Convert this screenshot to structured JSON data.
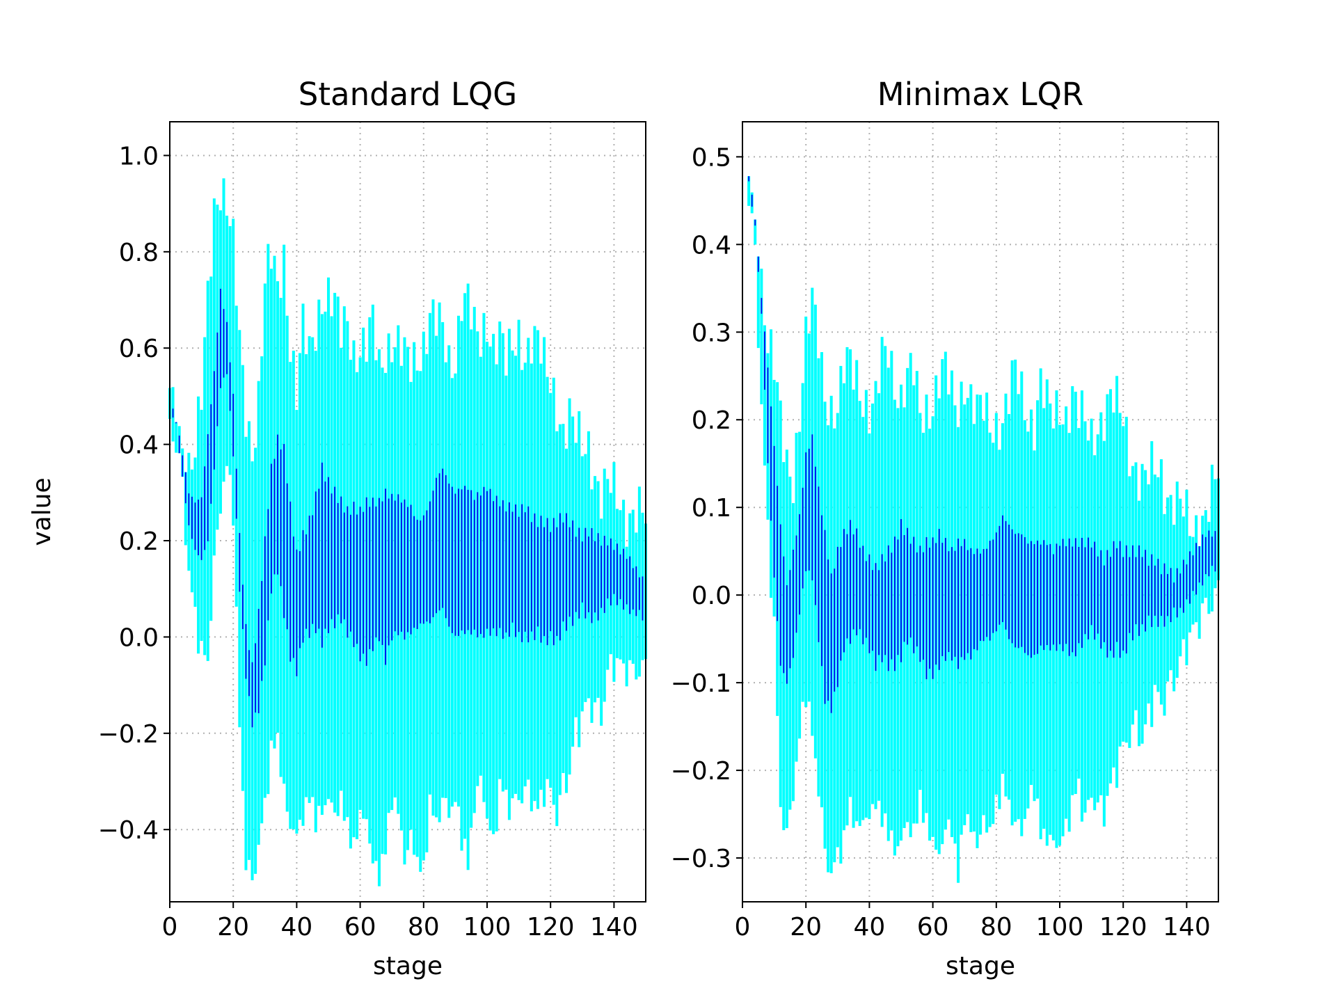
{
  "chart_data": [
    {
      "type": "bar",
      "title": "Standard LQG",
      "xlabel": "stage",
      "ylabel": "value",
      "xlim": [
        0,
        150
      ],
      "ylim": [
        -0.55,
        1.07
      ],
      "xticks": [
        0,
        20,
        40,
        60,
        80,
        100,
        120,
        140
      ],
      "yticks": [
        -0.4,
        -0.2,
        0.0,
        0.2,
        0.4,
        0.6,
        0.8,
        1.0
      ],
      "ytick_labels": [
        "−0.4",
        "−0.2",
        "0.0",
        "0.2",
        "0.4",
        "0.6",
        "0.8",
        "1.0"
      ],
      "grid": true,
      "band_colors": {
        "outer": "#00ffff",
        "inner": "#0000ee"
      },
      "stage": [
        0,
        2,
        4,
        6,
        8,
        10,
        12,
        14,
        16,
        18,
        20,
        22,
        24,
        26,
        28,
        30,
        32,
        34,
        36,
        38,
        40,
        42,
        44,
        46,
        48,
        50,
        52,
        54,
        56,
        58,
        60,
        62,
        64,
        66,
        68,
        70,
        72,
        74,
        76,
        78,
        80,
        82,
        84,
        86,
        88,
        90,
        92,
        94,
        96,
        98,
        100,
        102,
        104,
        106,
        108,
        110,
        112,
        114,
        116,
        118,
        120,
        122,
        124,
        126,
        128,
        130,
        132,
        134,
        136,
        138,
        140,
        142,
        144,
        146,
        148,
        150
      ],
      "outer_low": [
        0.48,
        0.43,
        0.36,
        0.16,
        0.07,
        0.0,
        -0.01,
        0.18,
        0.32,
        0.38,
        0.3,
        -0.15,
        -0.43,
        -0.47,
        -0.4,
        -0.32,
        -0.2,
        -0.18,
        -0.29,
        -0.35,
        -0.38,
        -0.33,
        -0.3,
        -0.35,
        -0.32,
        -0.3,
        -0.33,
        -0.3,
        -0.37,
        -0.4,
        -0.33,
        -0.35,
        -0.42,
        -0.47,
        -0.4,
        -0.3,
        -0.33,
        -0.42,
        -0.38,
        -0.43,
        -0.45,
        -0.32,
        -0.35,
        -0.3,
        -0.33,
        -0.3,
        -0.38,
        -0.45,
        -0.3,
        -0.27,
        -0.33,
        -0.4,
        -0.28,
        -0.3,
        -0.32,
        -0.3,
        -0.28,
        -0.3,
        -0.33,
        -0.28,
        -0.3,
        -0.33,
        -0.28,
        -0.25,
        -0.16,
        -0.15,
        -0.1,
        -0.12,
        -0.13,
        -0.05,
        -0.02,
        -0.04,
        -0.03,
        -0.05,
        -0.03,
        -0.04
      ],
      "inner_low": [
        0.48,
        0.44,
        0.33,
        0.23,
        0.18,
        0.16,
        0.2,
        0.35,
        0.52,
        0.55,
        0.38,
        0.1,
        -0.08,
        -0.18,
        -0.15,
        -0.05,
        0.1,
        0.14,
        0.05,
        -0.04,
        -0.07,
        0.0,
        0.01,
        0.02,
        -0.01,
        0.02,
        0.03,
        0.04,
        0.01,
        -0.01,
        -0.04,
        -0.05,
        -0.02,
        0.0,
        -0.05,
        0.0,
        0.01,
        0.0,
        0.01,
        0.02,
        0.03,
        0.03,
        0.05,
        0.06,
        0.02,
        0.0,
        0.01,
        0.01,
        0.01,
        0.0,
        0.01,
        0.01,
        0.01,
        0.0,
        0.02,
        0.0,
        0.0,
        0.0,
        0.01,
        -0.01,
        0.0,
        -0.01,
        0.02,
        0.03,
        0.04,
        0.06,
        0.04,
        0.04,
        0.05,
        0.07,
        0.08,
        0.07,
        0.06,
        0.05,
        0.05,
        0.03
      ],
      "inner_high": [
        0.49,
        0.45,
        0.38,
        0.3,
        0.28,
        0.29,
        0.42,
        0.55,
        0.72,
        0.65,
        0.5,
        0.21,
        0.02,
        -0.06,
        0.05,
        0.2,
        0.35,
        0.41,
        0.39,
        0.27,
        0.17,
        0.21,
        0.24,
        0.29,
        0.35,
        0.32,
        0.3,
        0.28,
        0.26,
        0.27,
        0.26,
        0.28,
        0.28,
        0.28,
        0.3,
        0.29,
        0.29,
        0.28,
        0.27,
        0.24,
        0.25,
        0.28,
        0.33,
        0.35,
        0.32,
        0.3,
        0.31,
        0.31,
        0.29,
        0.3,
        0.31,
        0.29,
        0.28,
        0.27,
        0.27,
        0.26,
        0.27,
        0.25,
        0.24,
        0.24,
        0.23,
        0.24,
        0.25,
        0.24,
        0.22,
        0.21,
        0.22,
        0.21,
        0.2,
        0.2,
        0.19,
        0.18,
        0.17,
        0.15,
        0.13,
        0.11
      ],
      "outer_high": [
        0.49,
        0.45,
        0.41,
        0.36,
        0.38,
        0.48,
        0.7,
        0.9,
        0.95,
        0.9,
        0.8,
        0.6,
        0.47,
        0.4,
        0.5,
        0.72,
        0.78,
        0.72,
        0.8,
        0.62,
        0.5,
        0.63,
        0.58,
        0.65,
        0.72,
        0.71,
        0.68,
        0.62,
        0.66,
        0.6,
        0.61,
        0.6,
        0.64,
        0.55,
        0.6,
        0.63,
        0.61,
        0.57,
        0.55,
        0.58,
        0.62,
        0.68,
        0.65,
        0.62,
        0.56,
        0.59,
        0.72,
        0.7,
        0.62,
        0.6,
        0.66,
        0.62,
        0.64,
        0.56,
        0.58,
        0.62,
        0.6,
        0.63,
        0.61,
        0.55,
        0.52,
        0.49,
        0.44,
        0.46,
        0.41,
        0.38,
        0.4,
        0.35,
        0.3,
        0.31,
        0.29,
        0.27,
        0.26,
        0.27,
        0.26,
        0.23
      ]
    },
    {
      "type": "bar",
      "title": "Minimax LQR",
      "xlabel": "stage",
      "ylabel": "",
      "xlim": [
        0,
        150
      ],
      "ylim": [
        -0.35,
        0.54
      ],
      "xticks": [
        0,
        20,
        40,
        60,
        80,
        100,
        120,
        140
      ],
      "yticks": [
        -0.3,
        -0.2,
        -0.1,
        0.0,
        0.1,
        0.2,
        0.3,
        0.4,
        0.5
      ],
      "ytick_labels": [
        "−0.3",
        "−0.2",
        "−0.1",
        "0.0",
        "0.1",
        "0.2",
        "0.3",
        "0.4",
        "0.5"
      ],
      "grid": true,
      "band_colors": {
        "outer": "#00ffff",
        "inner": "#0000ee"
      },
      "stage": [
        2,
        4,
        6,
        8,
        10,
        12,
        14,
        16,
        18,
        20,
        22,
        24,
        26,
        28,
        30,
        32,
        34,
        36,
        38,
        40,
        42,
        44,
        46,
        48,
        50,
        52,
        54,
        56,
        58,
        60,
        62,
        64,
        66,
        68,
        70,
        72,
        74,
        76,
        78,
        80,
        82,
        84,
        86,
        88,
        90,
        92,
        94,
        96,
        98,
        100,
        102,
        104,
        106,
        108,
        110,
        112,
        114,
        116,
        118,
        120,
        122,
        124,
        126,
        128,
        130,
        132,
        134,
        136,
        138,
        140,
        142,
        144,
        146,
        148,
        150
      ],
      "outer_low": [
        0.47,
        0.41,
        0.23,
        0.09,
        -0.02,
        -0.22,
        -0.26,
        -0.2,
        -0.15,
        -0.09,
        -0.14,
        -0.2,
        -0.27,
        -0.3,
        -0.28,
        -0.26,
        -0.22,
        -0.25,
        -0.23,
        -0.24,
        -0.21,
        -0.24,
        -0.25,
        -0.27,
        -0.26,
        -0.24,
        -0.25,
        -0.22,
        -0.24,
        -0.26,
        -0.28,
        -0.24,
        -0.25,
        -0.3,
        -0.23,
        -0.25,
        -0.26,
        -0.24,
        -0.25,
        -0.22,
        -0.2,
        -0.22,
        -0.24,
        -0.25,
        -0.22,
        -0.2,
        -0.26,
        -0.25,
        -0.27,
        -0.26,
        -0.25,
        -0.22,
        -0.2,
        -0.24,
        -0.21,
        -0.22,
        -0.23,
        -0.2,
        -0.18,
        -0.16,
        -0.14,
        -0.13,
        -0.15,
        -0.12,
        -0.1,
        -0.11,
        -0.09,
        -0.08,
        -0.06,
        -0.04,
        -0.03,
        -0.01,
        0.0,
        0.01,
        0.02
      ],
      "inner_low": [
        0.47,
        0.42,
        0.32,
        0.15,
        0.02,
        -0.08,
        -0.1,
        -0.07,
        -0.02,
        0.03,
        0.02,
        -0.05,
        -0.12,
        -0.13,
        -0.1,
        -0.06,
        -0.05,
        -0.04,
        -0.05,
        -0.06,
        -0.08,
        -0.07,
        -0.08,
        -0.08,
        -0.07,
        -0.05,
        -0.06,
        -0.07,
        -0.09,
        -0.09,
        -0.08,
        -0.07,
        -0.07,
        -0.08,
        -0.07,
        -0.07,
        -0.06,
        -0.05,
        -0.05,
        -0.04,
        -0.03,
        -0.05,
        -0.06,
        -0.06,
        -0.07,
        -0.07,
        -0.06,
        -0.06,
        -0.06,
        -0.06,
        -0.06,
        -0.07,
        -0.06,
        -0.05,
        -0.04,
        -0.05,
        -0.06,
        -0.07,
        -0.06,
        -0.07,
        -0.05,
        -0.04,
        -0.04,
        -0.03,
        -0.03,
        -0.03,
        -0.03,
        -0.02,
        -0.02,
        -0.01,
        0.0,
        0.01,
        0.02,
        0.03,
        0.03
      ],
      "inner_high": [
        0.48,
        0.43,
        0.34,
        0.26,
        0.17,
        0.08,
        0.01,
        0.05,
        0.09,
        0.16,
        0.18,
        0.12,
        0.07,
        0.02,
        0.05,
        0.07,
        0.08,
        0.07,
        0.05,
        0.04,
        0.03,
        0.04,
        0.05,
        0.06,
        0.08,
        0.07,
        0.06,
        0.05,
        0.06,
        0.06,
        0.07,
        0.06,
        0.05,
        0.06,
        0.06,
        0.05,
        0.05,
        0.05,
        0.06,
        0.07,
        0.09,
        0.08,
        0.07,
        0.07,
        0.06,
        0.06,
        0.06,
        0.06,
        0.05,
        0.06,
        0.06,
        0.06,
        0.06,
        0.06,
        0.06,
        0.05,
        0.04,
        0.05,
        0.06,
        0.05,
        0.05,
        0.05,
        0.05,
        0.04,
        0.04,
        0.03,
        0.03,
        0.02,
        0.03,
        0.04,
        0.05,
        0.06,
        0.07,
        0.07,
        0.07
      ],
      "outer_high": [
        0.48,
        0.43,
        0.36,
        0.28,
        0.25,
        0.2,
        0.16,
        0.14,
        0.2,
        0.28,
        0.33,
        0.3,
        0.24,
        0.21,
        0.2,
        0.25,
        0.27,
        0.26,
        0.23,
        0.2,
        0.21,
        0.27,
        0.29,
        0.25,
        0.22,
        0.24,
        0.25,
        0.21,
        0.22,
        0.22,
        0.24,
        0.25,
        0.23,
        0.22,
        0.25,
        0.22,
        0.2,
        0.21,
        0.2,
        0.2,
        0.2,
        0.22,
        0.25,
        0.23,
        0.21,
        0.2,
        0.24,
        0.21,
        0.2,
        0.22,
        0.21,
        0.23,
        0.2,
        0.19,
        0.18,
        0.2,
        0.21,
        0.22,
        0.21,
        0.2,
        0.17,
        0.15,
        0.13,
        0.13,
        0.14,
        0.14,
        0.12,
        0.11,
        0.1,
        0.08,
        0.07,
        0.09,
        0.1,
        0.12,
        0.13
      ]
    }
  ]
}
